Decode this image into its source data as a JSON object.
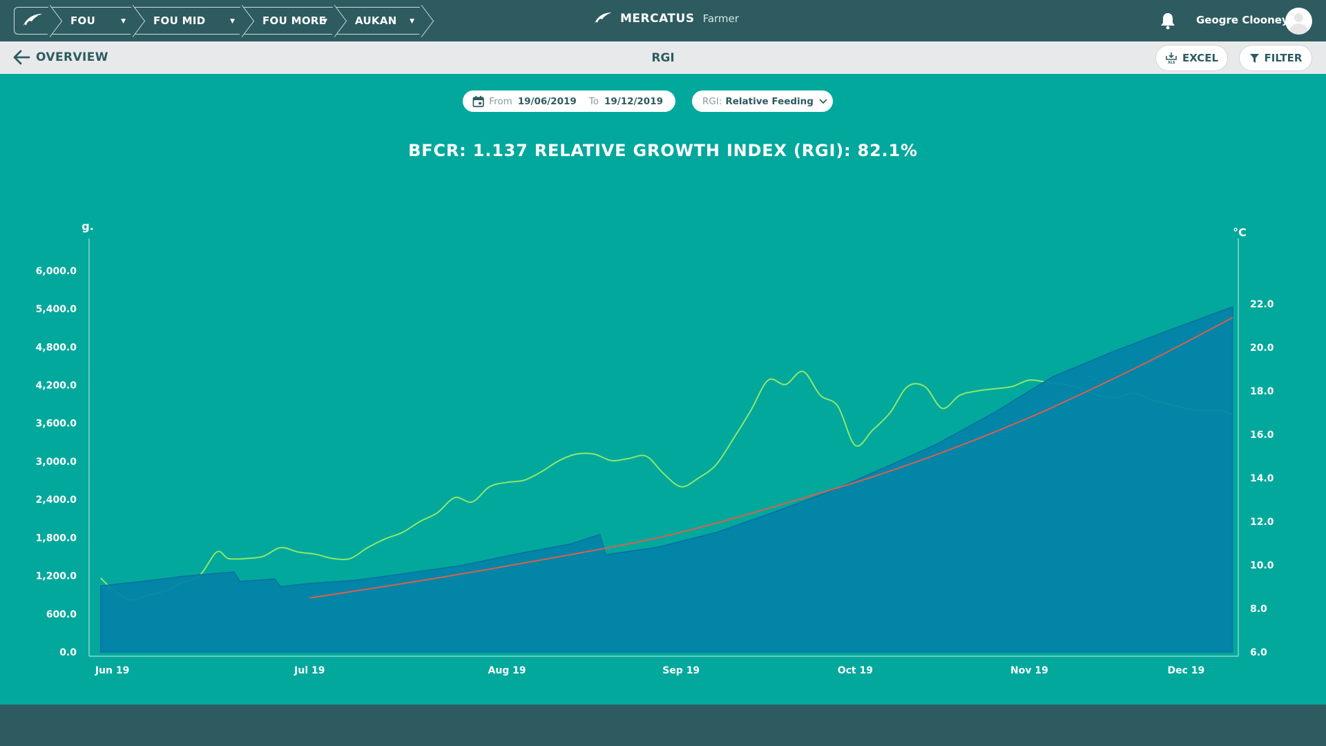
{
  "nav": {
    "breadcrumbs": [
      {
        "label": "FOU"
      },
      {
        "label": "FOU MID"
      },
      {
        "label": "FOU MORE"
      },
      {
        "label": "AUKAN"
      }
    ],
    "brand_name": "MERCATUS",
    "brand_sub": "Farmer",
    "user_name": "Geogre Clooney"
  },
  "subbar": {
    "back_label": "OVERVIEW",
    "title": "RGI",
    "excel_label": "EXCEL",
    "filter_label": "FILTER"
  },
  "filters": {
    "from_label": "From",
    "from_value": "19/06/2019",
    "to_label": "To",
    "to_value": "19/12/2019",
    "rgi_label": "RGI:",
    "rgi_value": "Relative Feeding"
  },
  "colors": {
    "background": "#02a89c",
    "area": "#0282a8",
    "temperature": "#8fe86a",
    "trend": "#d9604f"
  },
  "chart_data": {
    "type": "area",
    "title": "BFCR: 1.137 RELATIVE GROWTH INDEX (RGI): 82.1%",
    "y_left_label": "g.",
    "y_right_label": "°C",
    "y_left_ticks": [
      "0.0",
      "600.0",
      "1,200.0",
      "1,800.0",
      "2,400.0",
      "3,000.0",
      "3,600.0",
      "4,200.0",
      "4,800.0",
      "5,400.0",
      "6,000.0"
    ],
    "y_right_ticks": [
      "6.0",
      "8.0",
      "10.0",
      "12.0",
      "14.0",
      "16.0",
      "18.0",
      "20.0",
      "22.0"
    ],
    "ylim_left": [
      0,
      6400
    ],
    "ylim_right": [
      6,
      24.7
    ],
    "x_ticks": [
      "Jun 19",
      "Jul 19",
      "Aug 19",
      "Sep 19",
      "Oct 19",
      "Nov 19",
      "Dec 19"
    ],
    "xlim": [
      "2019-06-12",
      "2019-12-27"
    ],
    "x_tick_dates": [
      "2019-06-16",
      "2019-07-20",
      "2019-08-23",
      "2019-09-22",
      "2019-10-22",
      "2019-11-21",
      "2019-12-18"
    ],
    "grid": false,
    "legend": "none",
    "series": [
      {
        "kind": "area",
        "x": [
          "2019-06-14",
          "2019-06-17",
          "2019-06-22",
          "2019-06-28",
          "2019-07-03",
          "2019-07-07",
          "2019-07-08",
          "2019-07-14",
          "2019-07-15",
          "2019-07-20",
          "2019-07-28",
          "2019-08-05",
          "2019-08-15",
          "2019-08-25",
          "2019-09-03",
          "2019-09-08",
          "2019-09-09",
          "2019-09-18",
          "2019-09-28",
          "2019-10-08",
          "2019-10-18",
          "2019-10-28",
          "2019-11-05",
          "2019-11-15",
          "2019-11-25",
          "2019-12-05",
          "2019-12-15",
          "2019-12-26"
        ],
        "y": [
          1040,
          1070,
          1120,
          1190,
          1230,
          1260,
          1110,
          1150,
          1030,
          1080,
          1130,
          1230,
          1360,
          1550,
          1700,
          1850,
          1530,
          1650,
          1880,
          2200,
          2540,
          2940,
          3270,
          3770,
          4330,
          4710,
          5060,
          5430
        ]
      },
      {
        "kind": "trend",
        "x": [
          "2019-07-20",
          "2019-08-10",
          "2019-09-01",
          "2019-09-20",
          "2019-10-10",
          "2019-10-30",
          "2019-11-20",
          "2019-12-10",
          "2019-12-26"
        ],
        "y": [
          850,
          1150,
          1500,
          1840,
          2340,
          2910,
          3650,
          4500,
          5260
        ]
      },
      {
        "kind": "temperature",
        "x": [
          "2019-06-14",
          "2019-06-16",
          "2019-06-19",
          "2019-06-22",
          "2019-06-25",
          "2019-06-28",
          "2019-07-01",
          "2019-07-04",
          "2019-07-06",
          "2019-07-09",
          "2019-07-12",
          "2019-07-15",
          "2019-07-18",
          "2019-07-21",
          "2019-07-24",
          "2019-07-27",
          "2019-07-30",
          "2019-08-02",
          "2019-08-05",
          "2019-08-08",
          "2019-08-11",
          "2019-08-14",
          "2019-08-17",
          "2019-08-20",
          "2019-08-23",
          "2019-08-26",
          "2019-08-29",
          "2019-09-01",
          "2019-09-04",
          "2019-09-07",
          "2019-09-10",
          "2019-09-13",
          "2019-09-16",
          "2019-09-19",
          "2019-09-22",
          "2019-09-25",
          "2019-09-28",
          "2019-10-01",
          "2019-10-04",
          "2019-10-07",
          "2019-10-10",
          "2019-10-13",
          "2019-10-16",
          "2019-10-19",
          "2019-10-22",
          "2019-10-25",
          "2019-10-28",
          "2019-10-31",
          "2019-11-03",
          "2019-11-06",
          "2019-11-09",
          "2019-11-12",
          "2019-11-15",
          "2019-11-18",
          "2019-11-21",
          "2019-11-24",
          "2019-11-27",
          "2019-11-30",
          "2019-12-03",
          "2019-12-06",
          "2019-12-09",
          "2019-12-12",
          "2019-12-15",
          "2019-12-18",
          "2019-12-21",
          "2019-12-24",
          "2019-12-26"
        ],
        "y": [
          9.4,
          8.9,
          8.4,
          8.6,
          8.8,
          9.2,
          9.5,
          10.6,
          10.3,
          10.3,
          10.4,
          10.8,
          10.6,
          10.5,
          10.3,
          10.3,
          10.8,
          11.2,
          11.5,
          12.0,
          12.4,
          13.1,
          12.9,
          13.6,
          13.8,
          13.9,
          14.3,
          14.8,
          15.1,
          15.1,
          14.8,
          14.9,
          15.0,
          14.2,
          13.6,
          14.0,
          14.6,
          15.8,
          17.1,
          18.5,
          18.3,
          18.9,
          17.8,
          17.3,
          15.5,
          16.2,
          17.0,
          18.2,
          18.2,
          17.2,
          17.8,
          18.0,
          18.1,
          18.2,
          18.5,
          18.4,
          18.3,
          18.1,
          17.8,
          17.7,
          17.9,
          17.6,
          17.4,
          17.2,
          17.1,
          17.1,
          16.9
        ]
      }
    ]
  }
}
